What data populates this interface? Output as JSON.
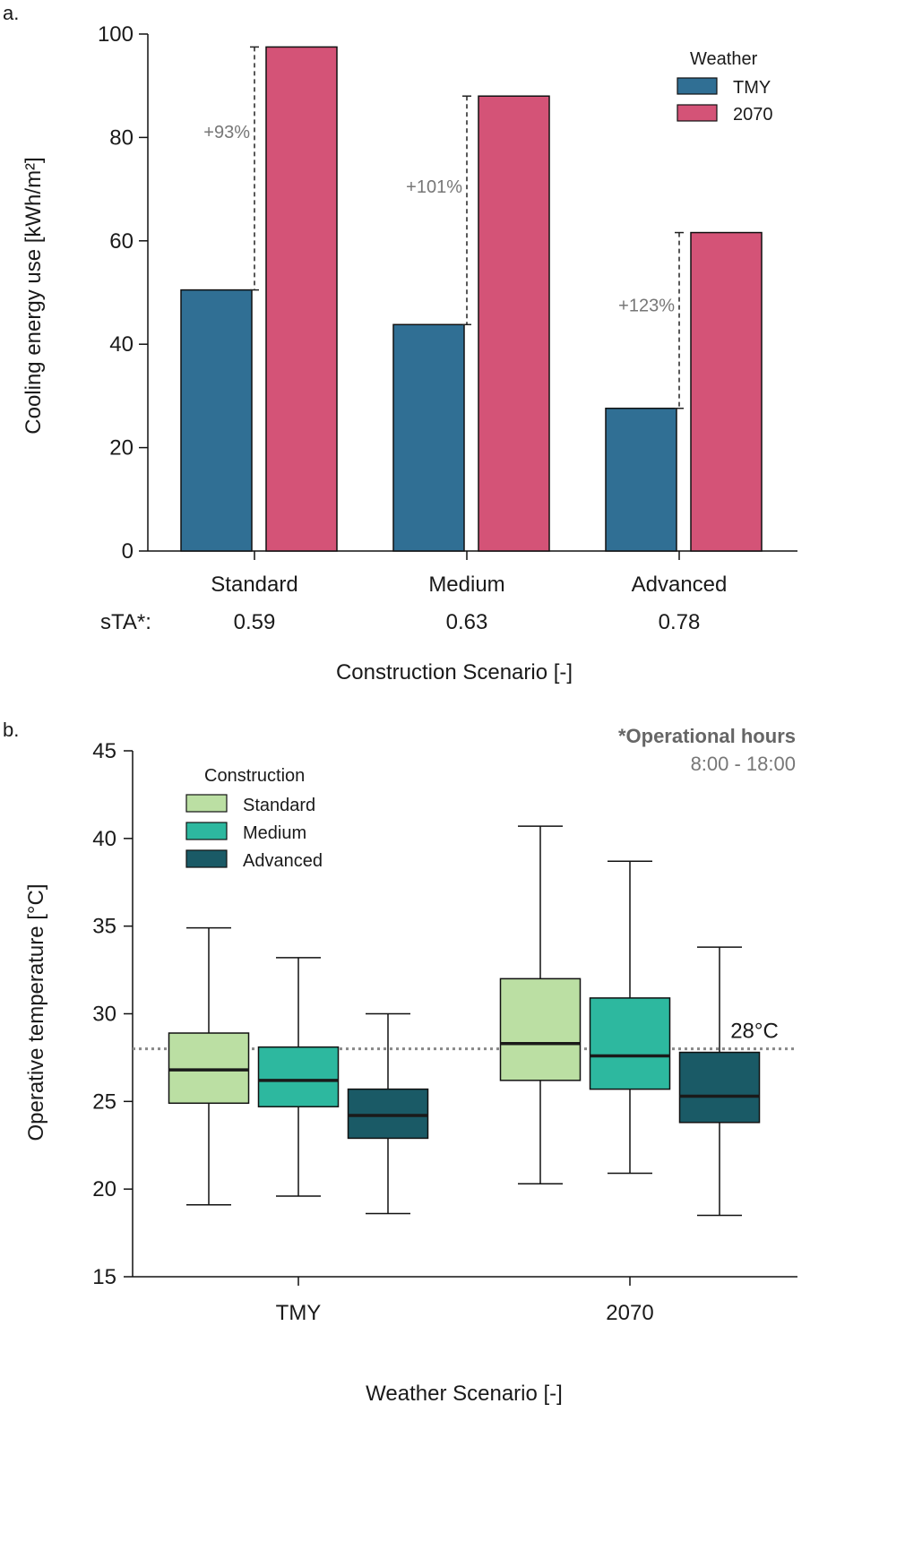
{
  "chart_data": [
    {
      "panel_label": "a.",
      "type": "bar",
      "ylabel": "Cooling energy use [kWh/m²]",
      "xlabel": "Construction Scenario [-]",
      "ylim": [
        0,
        100
      ],
      "yticks": [
        0,
        20,
        40,
        60,
        80,
        100
      ],
      "categories": [
        "Standard",
        "Medium",
        "Advanced"
      ],
      "secondary_label": "sTA*:",
      "secondary_values": [
        "0.59",
        "0.63",
        "0.78"
      ],
      "legend": {
        "title": "Weather",
        "position": "top-right"
      },
      "series": [
        {
          "name": "TMY",
          "color": "#306F94",
          "values": [
            50.5,
            43.8,
            27.6
          ]
        },
        {
          "name": "2070",
          "color": "#D45377",
          "values": [
            97.5,
            88.0,
            61.6
          ]
        }
      ],
      "annotations": [
        "+93%",
        "+101%",
        "+123%"
      ]
    },
    {
      "panel_label": "b.",
      "type": "box",
      "ylabel": "Operative temperature [°C]",
      "xlabel": "Weather Scenario [-]",
      "ylim": [
        15,
        45
      ],
      "yticks": [
        15,
        20,
        25,
        30,
        35,
        40,
        45
      ],
      "categories": [
        "TMY",
        "2070"
      ],
      "legend": {
        "title": "Construction",
        "position": "top-left"
      },
      "note_title": "*Operational hours",
      "note_text": "8:00 - 18:00",
      "reference_line": {
        "value": 28,
        "label": "28°C"
      },
      "series": [
        {
          "name": "Standard",
          "color": "#BBDFA3",
          "boxes": [
            {
              "min": 19.1,
              "q1": 24.9,
              "median": 26.8,
              "q3": 28.9,
              "max": 34.9
            },
            {
              "min": 20.3,
              "q1": 26.2,
              "median": 28.3,
              "q3": 32.0,
              "max": 40.7
            }
          ]
        },
        {
          "name": "Medium",
          "color": "#2DB89F",
          "boxes": [
            {
              "min": 19.6,
              "q1": 24.7,
              "median": 26.2,
              "q3": 28.1,
              "max": 33.2
            },
            {
              "min": 20.9,
              "q1": 25.7,
              "median": 27.6,
              "q3": 30.9,
              "max": 38.7
            }
          ]
        },
        {
          "name": "Advanced",
          "color": "#1A5A66",
          "boxes": [
            {
              "min": 18.6,
              "q1": 22.9,
              "median": 24.2,
              "q3": 25.7,
              "max": 30.0
            },
            {
              "min": 18.5,
              "q1": 23.8,
              "median": 25.3,
              "q3": 27.8,
              "max": 33.8
            }
          ]
        }
      ]
    }
  ]
}
